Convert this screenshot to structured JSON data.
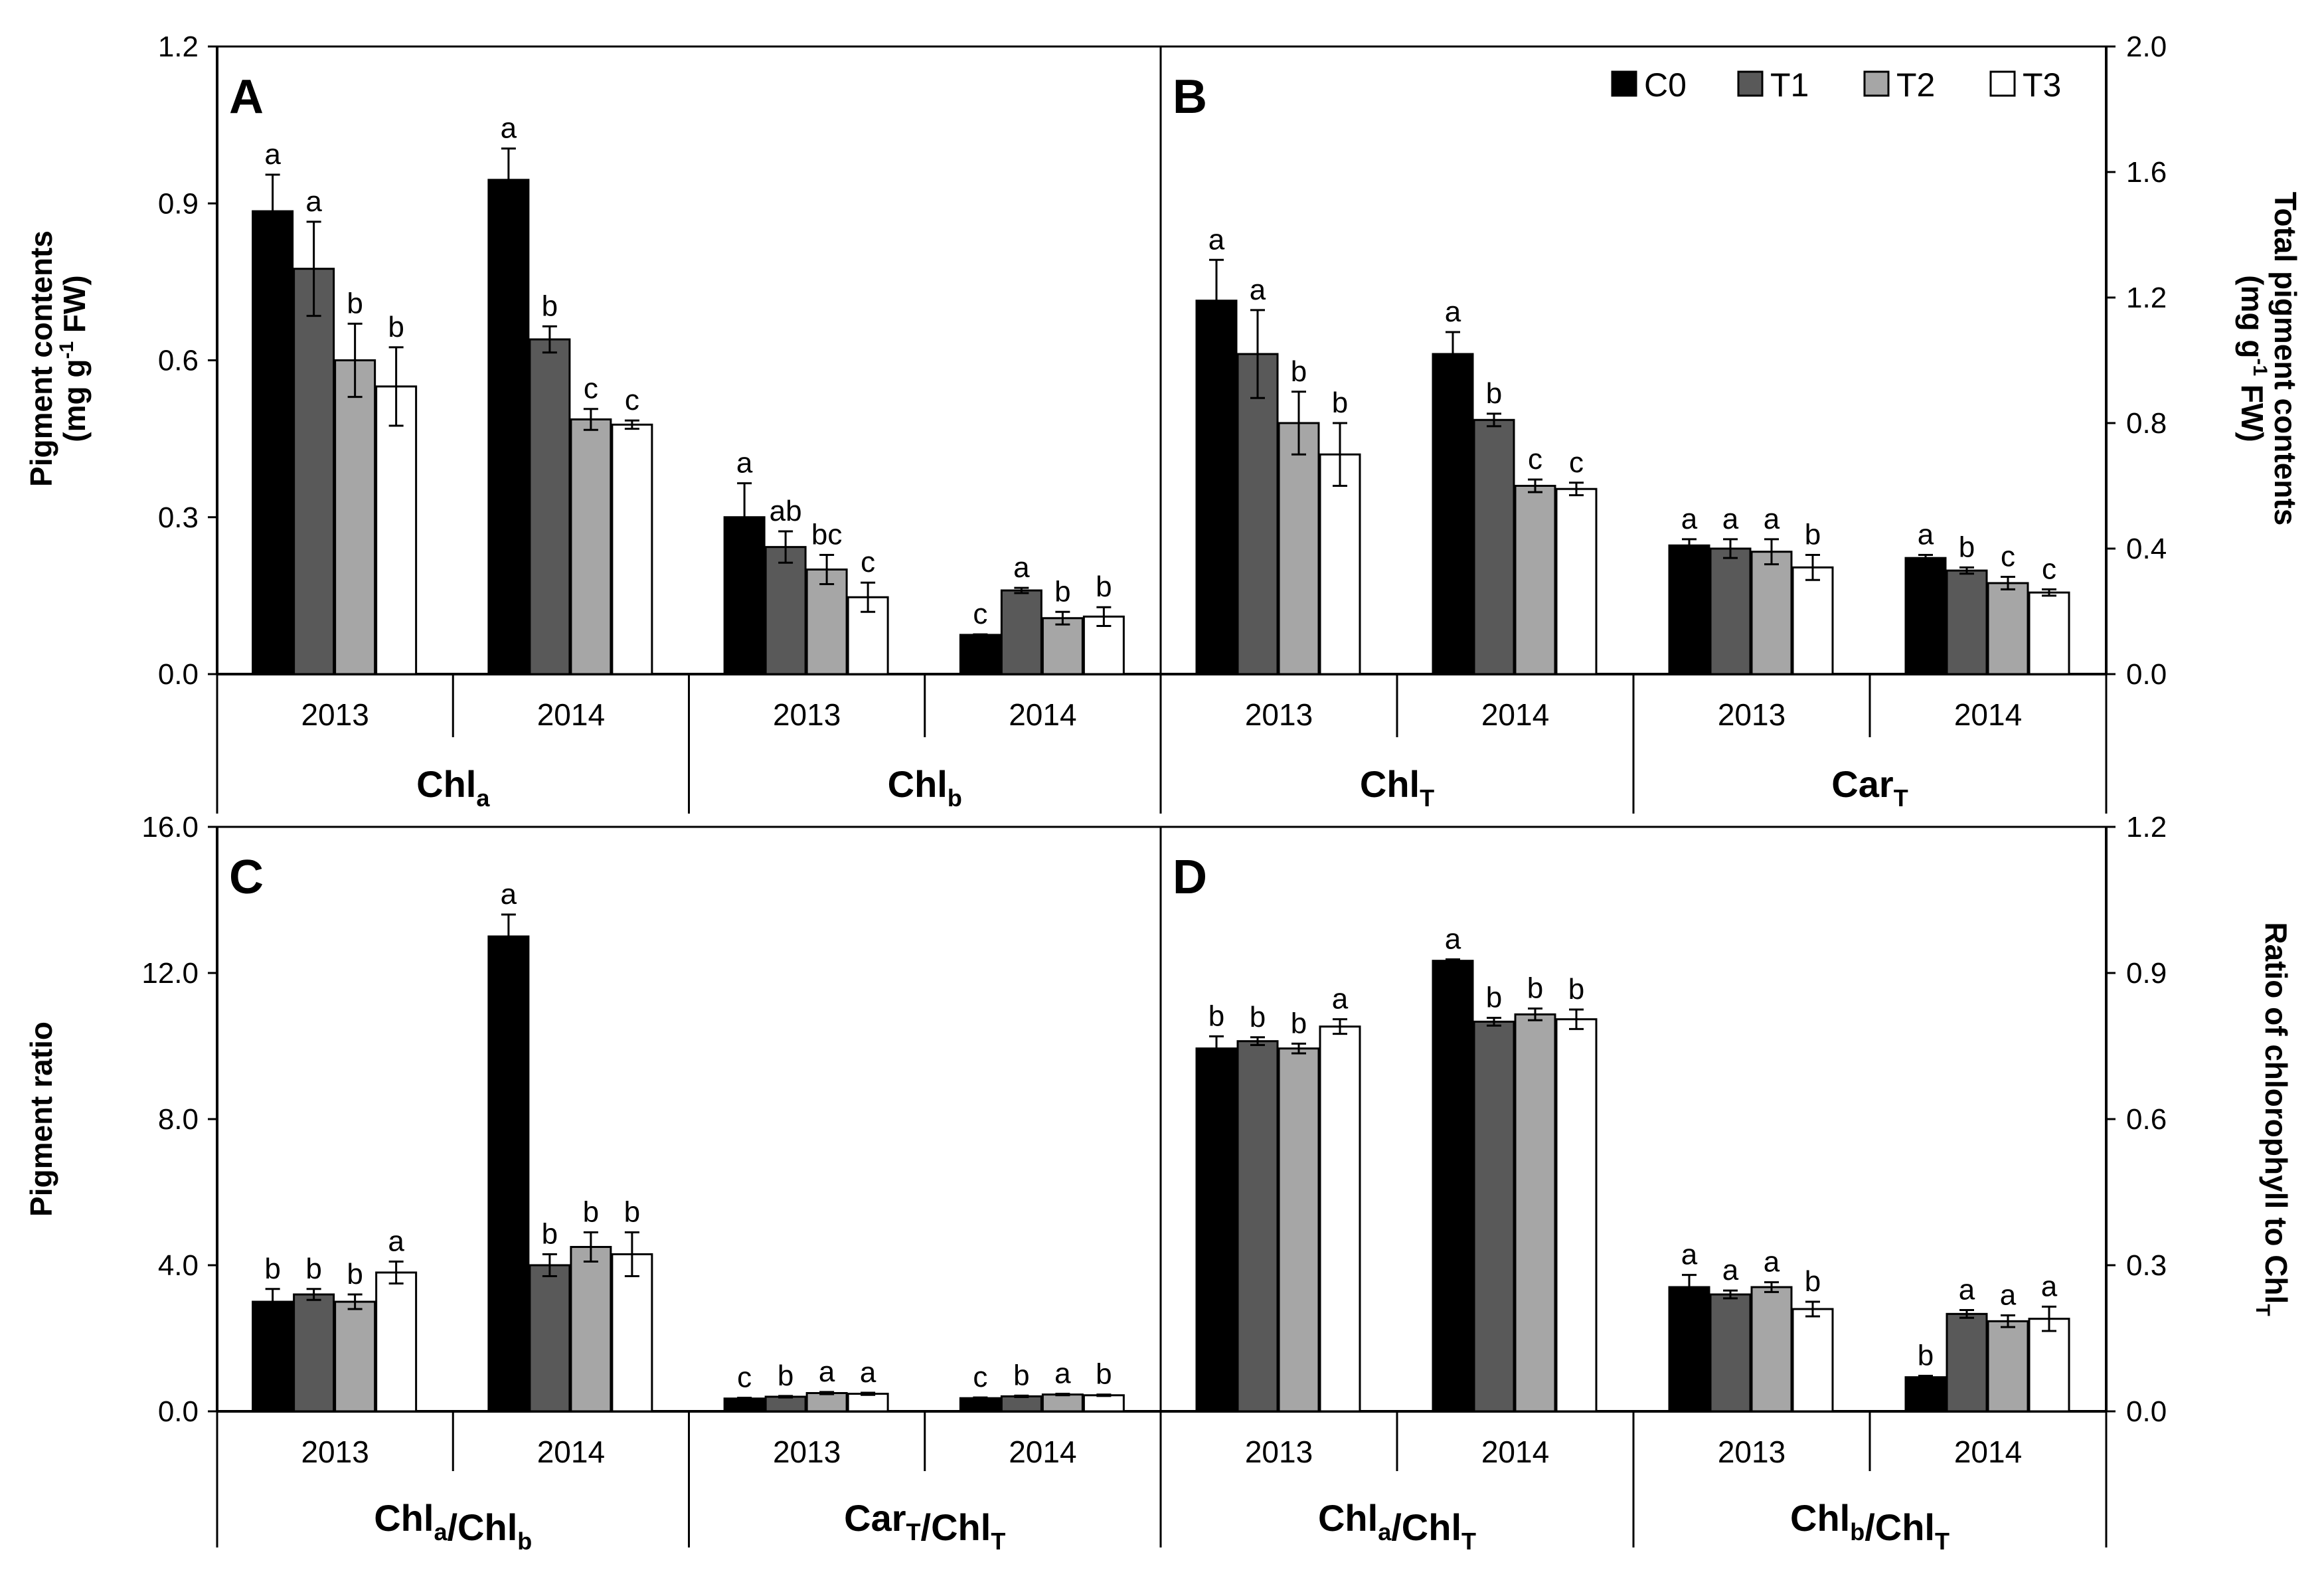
{
  "legend": [
    "C0",
    "T1",
    "T2",
    "T3"
  ],
  "colors": {
    "C0": "#000000",
    "T1": "#595959",
    "T2": "#a6a6a6",
    "T3": "#ffffff"
  },
  "chart_data": [
    {
      "panel": "A",
      "type": "bar",
      "axis": "left",
      "ylabel": "Pigment contents (mg g-1 FW)",
      "ylim": [
        0,
        1.2
      ],
      "ticks": [
        "0.0",
        "0.3",
        "0.6",
        "0.9",
        "1.2"
      ],
      "years": [
        "2013",
        "2014"
      ],
      "groups": [
        {
          "label": "Chla",
          "clusters": [
            {
              "year": "2013",
              "values": [
                0.885,
                0.775,
                0.6,
                0.55
              ],
              "errors": [
                0.07,
                0.09,
                0.07,
                0.075
              ],
              "letters": [
                "a",
                "a",
                "b",
                "b"
              ]
            },
            {
              "year": "2014",
              "values": [
                0.945,
                0.64,
                0.487,
                0.477
              ],
              "errors": [
                0.06,
                0.025,
                0.02,
                0.008
              ],
              "letters": [
                "a",
                "b",
                "c",
                "c"
              ]
            }
          ]
        },
        {
          "label": "Chlb",
          "clusters": [
            {
              "year": "2013",
              "values": [
                0.3,
                0.243,
                0.2,
                0.147
              ],
              "errors": [
                0.065,
                0.03,
                0.028,
                0.028
              ],
              "letters": [
                "a",
                "ab",
                "bc",
                "c"
              ]
            },
            {
              "year": "2014",
              "values": [
                0.075,
                0.16,
                0.107,
                0.11
              ],
              "errors": [
                0.001,
                0.005,
                0.012,
                0.018
              ],
              "letters": [
                "c",
                "a",
                "b",
                "b"
              ]
            }
          ]
        }
      ]
    },
    {
      "panel": "B",
      "type": "bar",
      "axis": "right",
      "ylabel": "Total pigment contents (mg g-1 FW)",
      "ylim": [
        0,
        2.0
      ],
      "ticks": [
        "0.0",
        "0.4",
        "0.8",
        "1.2",
        "1.6",
        "2.0"
      ],
      "years": [
        "2013",
        "2014"
      ],
      "groups": [
        {
          "label": "ChlT",
          "clusters": [
            {
              "year": "2013",
              "values": [
                1.19,
                1.02,
                0.8,
                0.7
              ],
              "errors": [
                0.13,
                0.14,
                0.1,
                0.1
              ],
              "letters": [
                "a",
                "a",
                "b",
                "b"
              ]
            },
            {
              "year": "2014",
              "values": [
                1.02,
                0.81,
                0.6,
                0.59
              ],
              "errors": [
                0.07,
                0.02,
                0.02,
                0.02
              ],
              "letters": [
                "a",
                "b",
                "c",
                "c"
              ]
            }
          ]
        },
        {
          "label": "CarT",
          "clusters": [
            {
              "year": "2013",
              "values": [
                0.41,
                0.4,
                0.39,
                0.34
              ],
              "errors": [
                0.02,
                0.03,
                0.04,
                0.04
              ],
              "letters": [
                "a",
                "a",
                "a",
                "b"
              ]
            },
            {
              "year": "2014",
              "values": [
                0.37,
                0.33,
                0.29,
                0.26
              ],
              "errors": [
                0.01,
                0.01,
                0.02,
                0.01
              ],
              "letters": [
                "a",
                "b",
                "c",
                "c"
              ]
            }
          ]
        }
      ]
    },
    {
      "panel": "C",
      "type": "bar",
      "axis": "left",
      "ylabel": "Pigment ratio",
      "ylim": [
        0,
        16
      ],
      "ticks": [
        "0.0",
        "4.0",
        "8.0",
        "12.0",
        "16.0"
      ],
      "years": [
        "2013",
        "2014"
      ],
      "groups": [
        {
          "label": "Chla/Chlb",
          "clusters": [
            {
              "year": "2013",
              "values": [
                3.0,
                3.2,
                3.0,
                3.8
              ],
              "errors": [
                0.35,
                0.15,
                0.2,
                0.3
              ],
              "letters": [
                "b",
                "b",
                "b",
                "a"
              ]
            },
            {
              "year": "2014",
              "values": [
                13.0,
                4.0,
                4.5,
                4.3
              ],
              "errors": [
                0.6,
                0.3,
                0.4,
                0.6
              ],
              "letters": [
                "a",
                "b",
                "b",
                "b"
              ]
            }
          ]
        },
        {
          "label": "CarT/ChlT",
          "clusters": [
            {
              "year": "2013",
              "values": [
                0.35,
                0.4,
                0.5,
                0.48
              ],
              "errors": [
                0.02,
                0.02,
                0.03,
                0.03
              ],
              "letters": [
                "c",
                "b",
                "a",
                "a"
              ]
            },
            {
              "year": "2014",
              "values": [
                0.36,
                0.41,
                0.46,
                0.44
              ],
              "errors": [
                0.02,
                0.02,
                0.02,
                0.02
              ],
              "letters": [
                "c",
                "b",
                "a",
                "b"
              ]
            }
          ]
        }
      ]
    },
    {
      "panel": "D",
      "type": "bar",
      "axis": "right",
      "ylabel": "Ratio of chlorophyll to ChlT",
      "ylim": [
        0,
        1.2
      ],
      "ticks": [
        "0.0",
        "0.3",
        "0.6",
        "0.9",
        "1.2"
      ],
      "years": [
        "2013",
        "2014"
      ],
      "groups": [
        {
          "label": "Chla/ChlT",
          "clusters": [
            {
              "year": "2013",
              "values": [
                0.745,
                0.76,
                0.745,
                0.79
              ],
              "errors": [
                0.025,
                0.008,
                0.01,
                0.015
              ],
              "letters": [
                "b",
                "b",
                "b",
                "a"
              ]
            },
            {
              "year": "2014",
              "values": [
                0.925,
                0.8,
                0.815,
                0.805
              ],
              "errors": [
                0.003,
                0.008,
                0.012,
                0.02
              ],
              "letters": [
                "a",
                "b",
                "b",
                "b"
              ]
            }
          ]
        },
        {
          "label": "Chlb/ChlT",
          "clusters": [
            {
              "year": "2013",
              "values": [
                0.255,
                0.24,
                0.255,
                0.21
              ],
              "errors": [
                0.025,
                0.008,
                0.01,
                0.015
              ],
              "letters": [
                "a",
                "a",
                "a",
                "b"
              ]
            },
            {
              "year": "2014",
              "values": [
                0.07,
                0.2,
                0.185,
                0.19
              ],
              "errors": [
                0.003,
                0.008,
                0.012,
                0.025
              ],
              "letters": [
                "b",
                "a",
                "a",
                "a"
              ]
            }
          ]
        }
      ]
    }
  ]
}
